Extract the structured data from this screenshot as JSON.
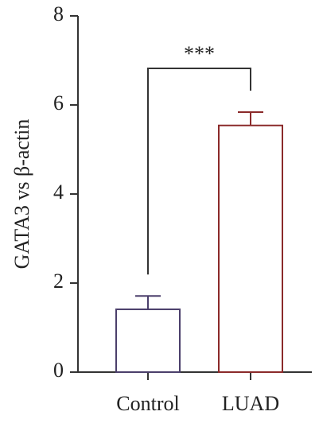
{
  "chart_data": {
    "type": "bar",
    "y_label": "GATA3 vs β-actin",
    "categories": [
      "Control",
      "LUAD"
    ],
    "values": [
      1.41,
      5.54
    ],
    "errors": [
      0.3,
      0.3
    ],
    "colors": [
      "#4b3f6b",
      "#8b2a2a"
    ],
    "ylim": [
      0,
      8
    ],
    "yticks": [
      0,
      2,
      4,
      6,
      8
    ],
    "annotation": "***"
  }
}
